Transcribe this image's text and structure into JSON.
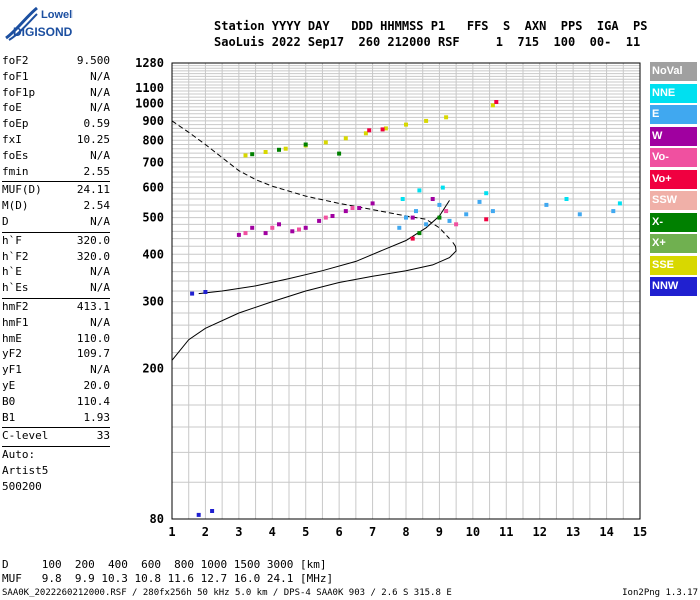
{
  "logo": {
    "line1": "Lowell",
    "line2": "DIGISONDE"
  },
  "header": {
    "line1": "Station YYYY DAY   DDD HHMMSS P1   FFS  S  AXN  PPS  IGA  PS",
    "line2": "SaoLuis 2022 Sep17  260 212000 RSF     1  715  100  00-  11"
  },
  "params": [
    {
      "label": "foF2",
      "value": "9.500"
    },
    {
      "label": "foF1",
      "value": "N/A"
    },
    {
      "label": "foF1p",
      "value": "N/A"
    },
    {
      "label": "foE",
      "value": "N/A"
    },
    {
      "label": "foEp",
      "value": "0.59"
    },
    {
      "label": "fxI",
      "value": "10.25"
    },
    {
      "label": "foEs",
      "value": "N/A"
    },
    {
      "label": "fmin",
      "value": "2.55"
    },
    {
      "sep": true
    },
    {
      "label": "MUF(D)",
      "value": "24.11"
    },
    {
      "label": "M(D)",
      "value": "2.54"
    },
    {
      "label": "D",
      "value": "N/A"
    },
    {
      "sep": true
    },
    {
      "label": "h`F",
      "value": "320.0"
    },
    {
      "label": "h`F2",
      "value": "320.0"
    },
    {
      "label": "h`E",
      "value": "N/A"
    },
    {
      "label": "h`Es",
      "value": "N/A"
    },
    {
      "sep": true
    },
    {
      "label": "hmF2",
      "value": "413.1"
    },
    {
      "label": "hmF1",
      "value": "N/A"
    },
    {
      "label": "hmE",
      "value": "110.0"
    },
    {
      "label": "yF2",
      "value": "109.7"
    },
    {
      "label": "yF1",
      "value": "N/A"
    },
    {
      "label": "yE",
      "value": "20.0"
    },
    {
      "label": "B0",
      "value": "110.4"
    },
    {
      "label": "B1",
      "value": "1.93"
    },
    {
      "sep": true
    },
    {
      "label": "C-level",
      "value": "33"
    },
    {
      "sep": true
    },
    {
      "label": "Auto:",
      "value": ""
    },
    {
      "label": "Artist5",
      "value": ""
    },
    {
      "label": "500200",
      "value": ""
    }
  ],
  "legend": [
    {
      "label": "NoVal",
      "color": "#a0a0a0"
    },
    {
      "label": "NNE",
      "color": "#00e0f0"
    },
    {
      "label": "E",
      "color": "#40a8f0"
    },
    {
      "label": "W",
      "color": "#a000a0"
    },
    {
      "label": "Vo-",
      "color": "#f050a0"
    },
    {
      "label": "Vo+",
      "color": "#f00040"
    },
    {
      "label": "SSW",
      "color": "#f0b0a8"
    },
    {
      "label": "X-",
      "color": "#008000"
    },
    {
      "label": "X+",
      "color": "#70b050"
    },
    {
      "label": "SSE",
      "color": "#d8d800"
    },
    {
      "label": "NNW",
      "color": "#2020d0"
    }
  ],
  "bottom": {
    "line1": "D     100  200  400  600  800 1000 1500 3000 [km]",
    "line2": "MUF   9.8  9.9 10.3 10.8 11.6 12.7 16.0 24.1 [MHz]"
  },
  "footer": {
    "left": "SAA0K_2022260212000.RSF / 280fx256h 50 kHz 5.0 km / DPS-4 SAA0K 903 / 2.6 S 315.8 E",
    "right": "Ion2Png 1.3.17"
  },
  "chart_data": {
    "type": "scatter",
    "title": "",
    "xlabel": "",
    "ylabel": "",
    "xlim": [
      1,
      15
    ],
    "ylim_log": [
      80,
      1280
    ],
    "x_ticks": [
      1,
      2,
      3,
      4,
      5,
      6,
      7,
      8,
      9,
      10,
      11,
      12,
      13,
      14,
      15
    ],
    "y_ticks": [
      80,
      200,
      300,
      400,
      500,
      600,
      700,
      800,
      900,
      1000,
      1100,
      1280
    ],
    "grid": true,
    "series": [
      {
        "name": "W",
        "color": "#a000a0",
        "points": [
          [
            3.0,
            450
          ],
          [
            3.4,
            470
          ],
          [
            3.8,
            455
          ],
          [
            4.2,
            480
          ],
          [
            4.6,
            460
          ],
          [
            5.0,
            470
          ],
          [
            5.4,
            490
          ],
          [
            5.8,
            505
          ],
          [
            6.2,
            520
          ],
          [
            6.6,
            530
          ],
          [
            7.0,
            545
          ],
          [
            8.2,
            500
          ],
          [
            8.8,
            560
          ]
        ]
      },
      {
        "name": "Vo-",
        "color": "#f050a0",
        "points": [
          [
            3.2,
            455
          ],
          [
            4.0,
            470
          ],
          [
            4.8,
            465
          ],
          [
            5.6,
            500
          ],
          [
            6.4,
            530
          ],
          [
            9.2,
            520
          ],
          [
            9.5,
            480
          ]
        ]
      },
      {
        "name": "E",
        "color": "#40a8f0",
        "points": [
          [
            7.8,
            470
          ],
          [
            8.0,
            500
          ],
          [
            8.3,
            520
          ],
          [
            8.6,
            480
          ],
          [
            9.0,
            540
          ],
          [
            9.3,
            490
          ],
          [
            9.8,
            510
          ],
          [
            10.2,
            550
          ],
          [
            10.6,
            520
          ],
          [
            12.2,
            540
          ],
          [
            13.2,
            510
          ],
          [
            14.2,
            520
          ]
        ]
      },
      {
        "name": "NNE",
        "color": "#00e0f0",
        "points": [
          [
            7.9,
            560
          ],
          [
            8.4,
            590
          ],
          [
            9.1,
            600
          ],
          [
            10.4,
            580
          ],
          [
            12.8,
            560
          ],
          [
            14.4,
            545
          ]
        ]
      },
      {
        "name": "SSE",
        "color": "#d8d800",
        "points": [
          [
            3.2,
            730
          ],
          [
            3.8,
            745
          ],
          [
            4.4,
            760
          ],
          [
            5.0,
            775
          ],
          [
            5.6,
            790
          ],
          [
            6.2,
            810
          ],
          [
            6.8,
            835
          ],
          [
            7.4,
            860
          ],
          [
            8.0,
            880
          ],
          [
            8.6,
            900
          ],
          [
            9.2,
            920
          ],
          [
            10.6,
            990
          ]
        ]
      },
      {
        "name": "NNW",
        "color": "#2020d0",
        "points": [
          [
            1.6,
            315
          ],
          [
            2.0,
            318
          ],
          [
            1.8,
            82
          ],
          [
            2.2,
            84
          ]
        ]
      },
      {
        "name": "X-",
        "color": "#008000",
        "points": [
          [
            3.4,
            735
          ],
          [
            4.2,
            755
          ],
          [
            5.0,
            780
          ],
          [
            6.0,
            738
          ],
          [
            8.4,
            455
          ],
          [
            9.0,
            500
          ]
        ]
      },
      {
        "name": "Vo+",
        "color": "#f00040",
        "points": [
          [
            6.9,
            850
          ],
          [
            7.3,
            855
          ],
          [
            8.2,
            440
          ],
          [
            10.4,
            495
          ],
          [
            10.7,
            1010
          ]
        ]
      }
    ],
    "trace_o": {
      "name": "O-trace",
      "points": [
        [
          1.8,
          315
        ],
        [
          2.5,
          320
        ],
        [
          3.5,
          330
        ],
        [
          4.5,
          345
        ],
        [
          5.5,
          362
        ],
        [
          6.5,
          383
        ],
        [
          7.3,
          410
        ],
        [
          8.0,
          435
        ],
        [
          8.6,
          470
        ],
        [
          9.0,
          505
        ],
        [
          9.3,
          555
        ]
      ]
    },
    "profile": {
      "name": "N(h) profile",
      "points": [
        [
          1.0,
          210
        ],
        [
          1.5,
          238
        ],
        [
          2.0,
          255
        ],
        [
          3.0,
          280
        ],
        [
          4.0,
          300
        ],
        [
          5.0,
          320
        ],
        [
          6.0,
          337
        ],
        [
          7.0,
          350
        ],
        [
          8.0,
          362
        ],
        [
          8.8,
          375
        ],
        [
          9.3,
          392
        ],
        [
          9.5,
          408
        ],
        [
          9.48,
          420
        ],
        [
          9.4,
          430
        ]
      ]
    },
    "muf_curve": {
      "name": "MUF",
      "points": [
        [
          1.0,
          900
        ],
        [
          1.5,
          840
        ],
        [
          2.0,
          780
        ],
        [
          2.5,
          720
        ],
        [
          3.0,
          665
        ],
        [
          3.5,
          630
        ],
        [
          4.0,
          605
        ],
        [
          5.0,
          570
        ],
        [
          6.0,
          545
        ],
        [
          7.0,
          525
        ],
        [
          8.0,
          505
        ],
        [
          8.6,
          495
        ],
        [
          9.0,
          470
        ],
        [
          9.3,
          440
        ]
      ]
    }
  }
}
